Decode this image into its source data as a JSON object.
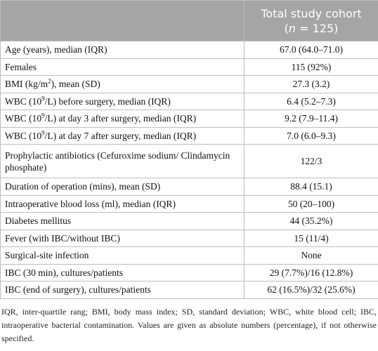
{
  "header": {
    "column_title": "Total study cohort",
    "column_subtitle": {
      "pre": "(",
      "italic": "n",
      "post": " = 125)"
    }
  },
  "table": {
    "rows": [
      [
        {
          "text": "Age (years), median (IQR)"
        },
        "67.0 (64.0–71.0)"
      ],
      [
        {
          "text": "Females"
        },
        "115 (92%)"
      ],
      [
        {
          "before": "BMI (kg/m",
          "sup": "2",
          "after": "), mean (SD)"
        },
        "27.3 (3.2)"
      ],
      [
        {
          "before": "WBC (10",
          "sup": "9",
          "after": "/L) before surgery, median (IQR)"
        },
        "6.4 (5.2–7.3)"
      ],
      [
        {
          "before": "WBC (10",
          "sup": "9",
          "after": "/L) at day 3 after surgery, median (IQR)"
        },
        "9.2 (7.9–11.4)"
      ],
      [
        {
          "before": "WBC (10",
          "sup": "9",
          "after": "/L) at day 7 after surgery, median (IQR)"
        },
        "7.0 (6.0–9.3)"
      ],
      [
        {
          "text": "Prophylactic antibiotics (Cefuroxime sodium/ Clindamycin phosphate)"
        },
        "122/3"
      ],
      [
        {
          "text": "Duration of operation (mins), mean (SD)"
        },
        "88.4 (15.1)"
      ],
      [
        {
          "text": "Intraoperative blood loss (ml), median (IQR)"
        },
        "50 (20–100)"
      ],
      [
        {
          "text": "Diabetes mellitus"
        },
        "44 (35.2%)"
      ],
      [
        {
          "text": "Fever (with IBC/without IBC)"
        },
        "15 (11/4)"
      ],
      [
        {
          "text": "Surgical-site infection"
        },
        "None"
      ],
      [
        {
          "text": "IBC (30 min), cultures/patients"
        },
        "29 (7.7%)/16 (12.8%)"
      ],
      [
        {
          "text": "IBC (end of surgery), cultures/patients"
        },
        "62 (16.5%)/32 (25.6%)"
      ]
    ]
  },
  "footnote": "IQR, inter-quartile rang; BMI, body mass index; SD, standard deviation; WBC, white blood cell; IBC, intraoperative bacterial contamination. Values are given as absolute numbers (percentage), if not otherwise specified."
}
